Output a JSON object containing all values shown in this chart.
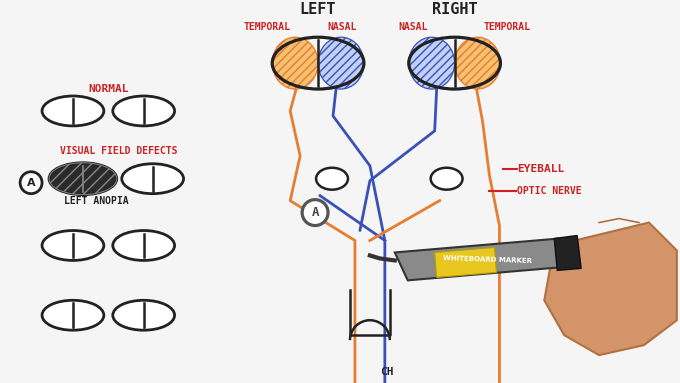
{
  "bg_color": "#f5f5f5",
  "left_label": "LEFT",
  "right_label": "RIGHT",
  "temporal_color": "#e87c30",
  "nasal_color": "#3a50b8",
  "red": "#cc2222",
  "black": "#222222",
  "normal_label": "NORMAL",
  "vfd_label": "VISUAL FIELD DEFECTS",
  "left_anopia_label": "LEFT ANOPIA",
  "eyeball_label": "EYEBALL",
  "optic_nerve_label": "OPTIC NERVE",
  "temporal_label": "TEMPORAL",
  "nasal_label": "NASAL",
  "marker_gray": "#8a8a8a",
  "marker_yellow": "#e8c820",
  "marker_dark": "#222222",
  "hand_color": "#d4956a",
  "hand_edge": "#b07040"
}
